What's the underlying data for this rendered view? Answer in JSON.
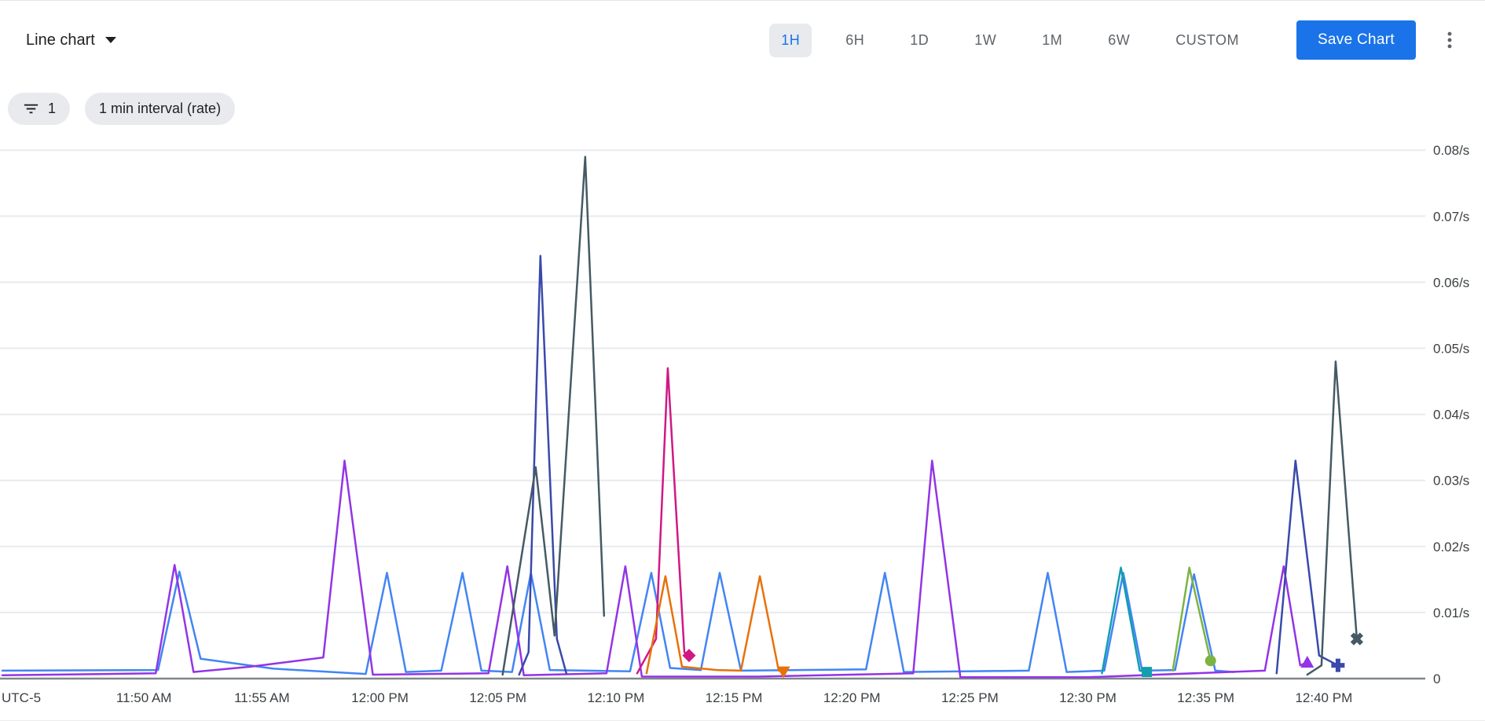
{
  "toolbar": {
    "chart_type_label": "Line chart",
    "time_ranges": [
      "1H",
      "6H",
      "1D",
      "1W",
      "1M",
      "6W",
      "CUSTOM"
    ],
    "selected_time_range": "1H",
    "save_button_label": "Save Chart"
  },
  "filters": {
    "filter_count": "1",
    "interval_chip_label": "1 min interval (rate)"
  },
  "colors": {
    "accent_blue": "#1a73e8",
    "selected_range_bg": "#e8eaed",
    "toolbar_text": "#5f6368",
    "chip_bg": "#e9eaed",
    "axis_line": "#80868b",
    "gridline": "#e8eaed",
    "label_text": "#3c4043"
  },
  "chart_data": {
    "type": "line",
    "title": "",
    "grid": "horizontal-only",
    "legend_position": "none",
    "y_axis": {
      "unit": "/s",
      "range": [
        0,
        0.0824
      ],
      "side": "right",
      "ticks": [
        {
          "v": 0.0,
          "label": "0"
        },
        {
          "v": 0.01,
          "label": "0.01/s"
        },
        {
          "v": 0.02,
          "label": "0.02/s"
        },
        {
          "v": 0.03,
          "label": "0.03/s"
        },
        {
          "v": 0.04,
          "label": "0.04/s"
        },
        {
          "v": 0.05,
          "label": "0.05/s"
        },
        {
          "v": 0.06,
          "label": "0.06/s"
        },
        {
          "v": 0.07,
          "label": "0.07/s"
        },
        {
          "v": 0.08,
          "label": "0.08/s"
        }
      ]
    },
    "x_axis": {
      "timezone_label": "UTC-5",
      "unit": "minutes since 11:00 AM",
      "range": [
        43.9,
        104.3
      ],
      "ticks": [
        {
          "t": 50,
          "label": "11:50 AM"
        },
        {
          "t": 55,
          "label": "11:55 AM"
        },
        {
          "t": 60,
          "label": "12:00 PM"
        },
        {
          "t": 65,
          "label": "12:05 PM"
        },
        {
          "t": 70,
          "label": "12:10 PM"
        },
        {
          "t": 75,
          "label": "12:15 PM"
        },
        {
          "t": 80,
          "label": "12:20 PM"
        },
        {
          "t": 85,
          "label": "12:25 PM"
        },
        {
          "t": 90,
          "label": "12:30 PM"
        },
        {
          "t": 95,
          "label": "12:35 PM"
        },
        {
          "t": 100,
          "label": "12:40 PM"
        }
      ]
    },
    "series": [
      {
        "name": "blue",
        "color": "#4285F4",
        "end_marker": null,
        "points": [
          [
            44,
            0.0012
          ],
          [
            50.6,
            0.0013
          ],
          [
            51.5,
            0.0162
          ],
          [
            52.4,
            0.003
          ],
          [
            55.5,
            0.0015
          ],
          [
            59.4,
            0.0007
          ],
          [
            60.3,
            0.016
          ],
          [
            61.1,
            0.001
          ],
          [
            62.6,
            0.0012
          ],
          [
            63.5,
            0.016
          ],
          [
            64.3,
            0.0012
          ],
          [
            65.6,
            0.001
          ],
          [
            66.4,
            0.016
          ],
          [
            67.2,
            0.0013
          ],
          [
            70.6,
            0.0011
          ],
          [
            71.5,
            0.016
          ],
          [
            72.3,
            0.0016
          ],
          [
            73.6,
            0.0013
          ],
          [
            74.4,
            0.016
          ],
          [
            75.3,
            0.0012
          ],
          [
            80.6,
            0.0014
          ],
          [
            81.4,
            0.016
          ],
          [
            82.2,
            0.001
          ],
          [
            87.5,
            0.0012
          ],
          [
            88.3,
            0.016
          ],
          [
            89.1,
            0.001
          ],
          [
            90.7,
            0.0012
          ],
          [
            91.5,
            0.016
          ],
          [
            92.3,
            0.0012
          ],
          [
            93.7,
            0.0013
          ],
          [
            94.5,
            0.0158
          ],
          [
            95.4,
            0.0012
          ],
          [
            96.2,
            0.001
          ]
        ]
      },
      {
        "name": "purple",
        "color": "#9334E6",
        "end_marker": {
          "shape": "triangle-up",
          "t": 99.3,
          "v": 0.0025
        },
        "points": [
          [
            44,
            0.0005
          ],
          [
            50.5,
            0.0008
          ],
          [
            51.3,
            0.0172
          ],
          [
            52.1,
            0.001
          ],
          [
            54.5,
            0.0018
          ],
          [
            57.6,
            0.0032
          ],
          [
            58.5,
            0.033
          ],
          [
            59.7,
            0.0006
          ],
          [
            64.6,
            0.0008
          ],
          [
            65.4,
            0.017
          ],
          [
            66.1,
            0.0005
          ],
          [
            69.6,
            0.0008
          ],
          [
            70.4,
            0.017
          ],
          [
            71.1,
            0.0003
          ],
          [
            76,
            0.0003
          ],
          [
            82.6,
            0.0008
          ],
          [
            83.4,
            0.033
          ],
          [
            84.6,
            0.0002
          ],
          [
            90,
            0.0002
          ],
          [
            97.5,
            0.0012
          ],
          [
            98.3,
            0.017
          ],
          [
            99.0,
            0.002
          ],
          [
            99.3,
            0.0025
          ]
        ]
      },
      {
        "name": "indigo-a",
        "color": "#3949AB",
        "end_marker": null,
        "points": [
          [
            65.9,
            0.0006
          ],
          [
            66.3,
            0.004
          ],
          [
            66.8,
            0.064
          ],
          [
            67.5,
            0.006
          ],
          [
            67.9,
            0.0008
          ]
        ]
      },
      {
        "name": "slate-a",
        "color": "#455A64",
        "end_marker": null,
        "points": [
          [
            65.2,
            0.0006
          ],
          [
            66.6,
            0.032
          ],
          [
            67.4,
            0.0065
          ],
          [
            68.7,
            0.079
          ],
          [
            69.5,
            0.0095
          ]
        ]
      },
      {
        "name": "pink",
        "color": "#D01884",
        "end_marker": {
          "shape": "diamond",
          "t": 73.1,
          "v": 0.0035
        },
        "points": [
          [
            70.9,
            0.0008
          ],
          [
            71.7,
            0.006
          ],
          [
            72.2,
            0.047
          ],
          [
            72.9,
            0.004
          ],
          [
            73.1,
            0.0035
          ]
        ]
      },
      {
        "name": "orange",
        "color": "#E8710A",
        "end_marker": {
          "shape": "triangle-down",
          "t": 77.1,
          "v": 0.001
        },
        "points": [
          [
            71.3,
            0.0008
          ],
          [
            72.1,
            0.0155
          ],
          [
            72.8,
            0.0018
          ],
          [
            74.3,
            0.0013
          ],
          [
            75.3,
            0.0012
          ],
          [
            76.1,
            0.0155
          ],
          [
            76.9,
            0.0012
          ],
          [
            77.1,
            0.001
          ]
        ]
      },
      {
        "name": "teal",
        "color": "#129EAF",
        "end_marker": {
          "shape": "square",
          "t": 92.5,
          "v": 0.001
        },
        "points": [
          [
            90.6,
            0.0008
          ],
          [
            91.4,
            0.0168
          ],
          [
            92.2,
            0.0012
          ],
          [
            92.5,
            0.001
          ]
        ]
      },
      {
        "name": "green",
        "color": "#7CB342",
        "end_marker": {
          "shape": "circle",
          "t": 95.2,
          "v": 0.0027
        },
        "points": [
          [
            93.6,
            0.0012
          ],
          [
            94.3,
            0.0168
          ],
          [
            95.2,
            0.0027
          ]
        ]
      },
      {
        "name": "indigo-b",
        "color": "#3949AB",
        "end_marker": {
          "shape": "plus",
          "t": 100.6,
          "v": 0.002
        },
        "points": [
          [
            98.0,
            0.0008
          ],
          [
            98.8,
            0.033
          ],
          [
            99.8,
            0.0035
          ],
          [
            100.6,
            0.002
          ]
        ]
      },
      {
        "name": "slate-b",
        "color": "#455A64",
        "end_marker": {
          "shape": "x",
          "t": 101.4,
          "v": 0.006
        },
        "points": [
          [
            99.3,
            0.0006
          ],
          [
            99.9,
            0.002
          ],
          [
            100.5,
            0.048
          ],
          [
            101.4,
            0.006
          ]
        ]
      }
    ]
  }
}
